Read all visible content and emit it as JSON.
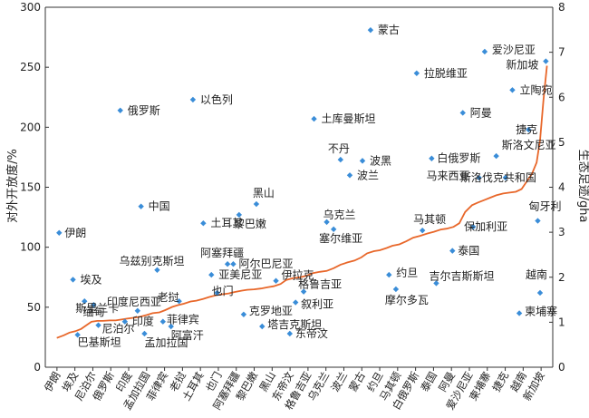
{
  "chart_data": {
    "type": "scatter+line",
    "ylabel_left": "对外开放度/%",
    "ylabel_right": "生态足迹/gha",
    "ylim_left": [
      0,
      300
    ],
    "ylim_right": [
      0,
      8
    ],
    "yticks_left": [
      "0",
      "50",
      "100",
      "150",
      "200",
      "250",
      "300"
    ],
    "yticks_right": [
      "0",
      "1",
      "2",
      "3",
      "4",
      "5",
      "6",
      "7",
      "8"
    ],
    "grid": false,
    "categories": [
      "伊朗",
      "埃及",
      "尼泊尔",
      "俄罗斯",
      "印度",
      "孟加拉国",
      "菲律宾",
      "老挝",
      "土耳其",
      "也门",
      "阿塞拜疆",
      "黎巴嫩",
      "黑山",
      "东帝汶",
      "格鲁吉亚",
      "乌克兰",
      "波兰",
      "蒙古",
      "约旦",
      "马其顿",
      "白俄罗斯",
      "泰国",
      "阿曼",
      "爱沙尼亚",
      "柬埔寨",
      "捷克",
      "越南",
      "新加坡"
    ],
    "series": [
      {
        "name": "对外开放度",
        "axis": "left",
        "type": "scatter",
        "points": [
          {
            "label": "伊朗",
            "x": 1.2,
            "y": 112
          },
          {
            "label": "埃及",
            "x": 2.4,
            "y": 73
          },
          {
            "label": "斯里兰卡",
            "x": 3.4,
            "y": 55
          },
          {
            "label": "缅甸",
            "x": 4.2,
            "y": 52
          },
          {
            "label": "巴基斯坦",
            "x": 2.8,
            "y": 27
          },
          {
            "label": "尼泊尔",
            "x": 4.6,
            "y": 35
          },
          {
            "label": "俄罗斯",
            "x": 6.5,
            "y": 214
          },
          {
            "label": "印度",
            "x": 6.9,
            "y": 38
          },
          {
            "label": "印度尼西亚",
            "x": 8.0,
            "y": 47
          },
          {
            "label": "孟加拉国",
            "x": 8.6,
            "y": 28
          },
          {
            "label": "中国",
            "x": 8.3,
            "y": 134
          },
          {
            "label": "乌兹别克斯坦",
            "x": 9.7,
            "y": 81
          },
          {
            "label": "菲律宾",
            "x": 10.2,
            "y": 38
          },
          {
            "label": "阿富汗",
            "x": 10.9,
            "y": 34
          },
          {
            "label": "老挝",
            "x": 11.6,
            "y": 55
          },
          {
            "label": "以色列",
            "x": 12.8,
            "y": 223
          },
          {
            "label": "土耳其",
            "x": 13.7,
            "y": 120
          },
          {
            "label": "亚美尼亚",
            "x": 14.4,
            "y": 77
          },
          {
            "label": "也门",
            "x": 14.9,
            "y": 62
          },
          {
            "label": "阿塞拜疆",
            "x": 15.8,
            "y": 86
          },
          {
            "label": "阿尔巴尼亚",
            "x": 16.3,
            "y": 86
          },
          {
            "label": "黎巴嫩",
            "x": 16.8,
            "y": 127
          },
          {
            "label": "克罗地亚",
            "x": 17.2,
            "y": 44
          },
          {
            "label": "黑山",
            "x": 18.3,
            "y": 136
          },
          {
            "label": "塔吉克斯坦",
            "x": 18.8,
            "y": 34
          },
          {
            "label": "伊拉克",
            "x": 20.0,
            "y": 72
          },
          {
            "label": "东帝汶",
            "x": 21.2,
            "y": 28
          },
          {
            "label": "叙利亚",
            "x": 21.7,
            "y": 54
          },
          {
            "label": "格鲁吉亚",
            "x": 22.4,
            "y": 63
          },
          {
            "label": "土库曼斯坦",
            "x": 23.3,
            "y": 207
          },
          {
            "label": "乌克兰",
            "x": 24.4,
            "y": 121
          },
          {
            "label": "塞尔维亚",
            "x": 25.0,
            "y": 115
          },
          {
            "label": "不丹",
            "x": 25.6,
            "y": 173
          },
          {
            "label": "波兰",
            "x": 26.4,
            "y": 160
          },
          {
            "label": "波黑",
            "x": 27.5,
            "y": 172
          },
          {
            "label": "蒙古",
            "x": 28.2,
            "y": 281
          },
          {
            "label": "约旦",
            "x": 29.8,
            "y": 77
          },
          {
            "label": "摩尔多瓦",
            "x": 30.4,
            "y": 65
          },
          {
            "label": "拉脱维亚",
            "x": 32.2,
            "y": 245
          },
          {
            "label": "马其顿",
            "x": 32.7,
            "y": 114
          },
          {
            "label": "白俄罗斯",
            "x": 33.5,
            "y": 174
          },
          {
            "label": "吉尔吉斯斯坦",
            "x": 33.9,
            "y": 70
          },
          {
            "label": "泰国",
            "x": 35.3,
            "y": 97
          },
          {
            "label": "阿曼",
            "x": 36.2,
            "y": 212
          },
          {
            "label": "马来西亚",
            "x": 37.6,
            "y": 158
          },
          {
            "label": "保加利亚",
            "x": 37.1,
            "y": 117
          },
          {
            "label": "爱沙尼亚",
            "x": 38.1,
            "y": 263
          },
          {
            "label": "斯洛文尼亚",
            "x": 39.1,
            "y": 176
          },
          {
            "label": "斯洛伐克共和国",
            "x": 39.9,
            "y": 158
          },
          {
            "label": "立陶宛",
            "x": 40.5,
            "y": 231
          },
          {
            "label": "柬埔寨",
            "x": 41.1,
            "y": 45
          },
          {
            "label": "捷克",
            "x": 41.9,
            "y": 198
          },
          {
            "label": "匈牙利",
            "x": 42.7,
            "y": 122
          },
          {
            "label": "越南",
            "x": 42.9,
            "y": 62
          },
          {
            "label": "新加坡",
            "x": 43.4,
            "y": 255
          }
        ]
      },
      {
        "name": "生态足迹",
        "axis": "right",
        "type": "line",
        "x": [
          1,
          1.6,
          2.1,
          2.6,
          3.1,
          3.6,
          4.0,
          4.5,
          5.0,
          5.6,
          6.1,
          6.6,
          7.1,
          7.7,
          8.2,
          8.8,
          9.3,
          9.9,
          10.4,
          11.0,
          11.5,
          12.0,
          12.6,
          13.1,
          13.7,
          14.2,
          14.8,
          15.3,
          15.9,
          16.4,
          17.0,
          17.5,
          18.1,
          18.7,
          19.3,
          19.8,
          20.4,
          20.9,
          21.5,
          22.1,
          22.6,
          23.2,
          23.8,
          24.4,
          25.0,
          25.6,
          26.2,
          26.8,
          27.4,
          27.9,
          28.5,
          29.0,
          29.6,
          30.1,
          30.7,
          31.3,
          31.9,
          32.5,
          33.1,
          33.7,
          34.3,
          34.8,
          35.4,
          35.9,
          36.4,
          37.0,
          37.5,
          38.1,
          38.6,
          39.1,
          39.7,
          40.2,
          40.8,
          41.3,
          41.8,
          42.2,
          42.6,
          42.9,
          43.2,
          43.5
        ],
        "values": [
          0.65,
          0.71,
          0.77,
          0.8,
          0.85,
          0.94,
          1.01,
          1.03,
          1.03,
          1.04,
          1.04,
          1.06,
          1.08,
          1.1,
          1.12,
          1.16,
          1.2,
          1.22,
          1.27,
          1.34,
          1.38,
          1.41,
          1.46,
          1.48,
          1.52,
          1.56,
          1.6,
          1.62,
          1.64,
          1.67,
          1.7,
          1.72,
          1.73,
          1.75,
          1.78,
          1.8,
          1.85,
          1.94,
          1.98,
          2.0,
          2.03,
          2.09,
          2.12,
          2.14,
          2.2,
          2.28,
          2.33,
          2.37,
          2.44,
          2.53,
          2.58,
          2.6,
          2.65,
          2.7,
          2.73,
          2.8,
          2.88,
          2.92,
          2.97,
          3.01,
          3.06,
          3.08,
          3.12,
          3.2,
          3.45,
          3.6,
          3.66,
          3.72,
          3.77,
          3.82,
          3.86,
          3.88,
          3.9,
          3.96,
          4.15,
          4.3,
          4.55,
          5.05,
          5.95,
          6.7
        ]
      }
    ],
    "colors": {
      "scatter": "#3a8dd8",
      "line": "#e8672a",
      "axis": "#333333"
    }
  }
}
